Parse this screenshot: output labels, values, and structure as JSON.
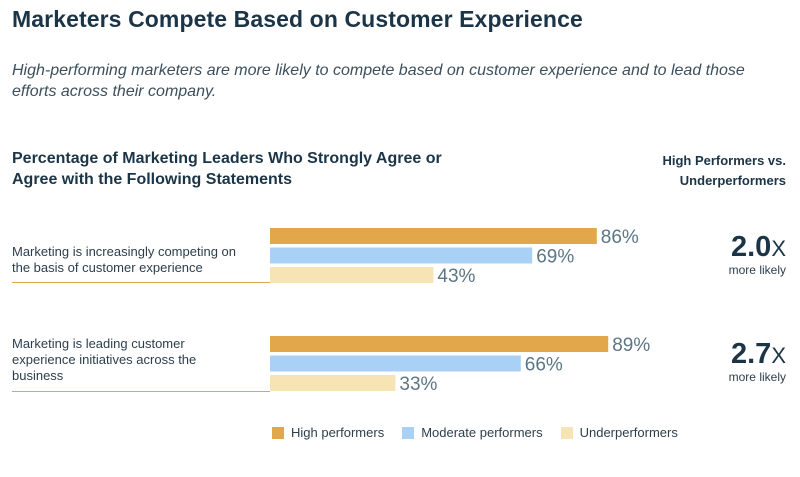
{
  "header": {
    "title": "Marketers Compete Based on Customer Experience",
    "subtitle": "High-performing marketers are more likely to compete based on customer experience and to lead those efforts across their company."
  },
  "chart_data": {
    "type": "bar",
    "orientation": "horizontal",
    "title": "Percentage of Marketing Leaders Who Strongly Agree or Agree with the Following Statements",
    "comparison_header": "High Performers vs. Underperformers",
    "categories": [
      "Marketing is increasingly competing on the basis of customer experience",
      "Marketing is leading customer experience initiatives across the business"
    ],
    "series": [
      {
        "name": "High performers",
        "values": [
          86,
          89
        ],
        "labels": [
          "86%",
          "89%"
        ],
        "color": "#e2a74a"
      },
      {
        "name": "Moderate performers",
        "values": [
          69,
          66
        ],
        "labels": [
          "69%",
          "66%"
        ],
        "color": "#a8d1f5"
      },
      {
        "name": "Underperformers",
        "values": [
          43,
          33
        ],
        "labels": [
          "43%",
          "33%"
        ],
        "color": "#f7e4b5"
      }
    ],
    "ratios": [
      {
        "value": "2.0",
        "unit": "X",
        "sub": "more likely"
      },
      {
        "value": "2.7",
        "unit": "X",
        "sub": "more likely"
      }
    ],
    "xlim": [
      0,
      100
    ],
    "legend_position": "bottom"
  },
  "colors": {
    "label_text": "#5b7685"
  }
}
